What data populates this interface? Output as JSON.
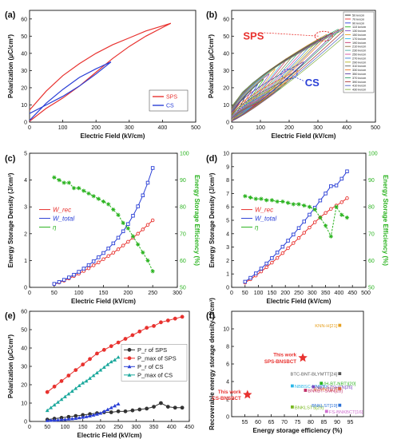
{
  "panels": {
    "a": "(a)",
    "b": "(b)",
    "c": "(c)",
    "d": "(d)",
    "e": "(e)",
    "f": "(f)"
  },
  "chart_data": [
    {
      "id": "a",
      "type": "line",
      "xlabel": "Electric Field (kV/cm)",
      "ylabel": "Polarization (μC/cm²)",
      "xlim": [
        0,
        500
      ],
      "ylim": [
        0,
        65
      ],
      "xticks": [
        0,
        100,
        200,
        300,
        400,
        500
      ],
      "yticks": [
        0,
        10,
        20,
        30,
        40,
        50,
        60
      ],
      "legend_position": "bottom-right",
      "colors": {
        "SPS": "#e8322f",
        "CS": "#2a3fd6"
      },
      "series": [
        {
          "name": "SPS",
          "color": "#e8322f",
          "up": [
            [
              0,
              7
            ],
            [
              50,
              18
            ],
            [
              100,
              27
            ],
            [
              150,
              34
            ],
            [
              200,
              40
            ],
            [
              250,
              45
            ],
            [
              300,
              49
            ],
            [
              350,
              53
            ],
            [
              400,
              56
            ],
            [
              425,
              57.5
            ]
          ],
          "down": [
            [
              425,
              57.5
            ],
            [
              400,
              55
            ],
            [
              350,
              50
            ],
            [
              300,
              44
            ],
            [
              250,
              37
            ],
            [
              200,
              29
            ],
            [
              150,
              21
            ],
            [
              100,
              14
            ],
            [
              50,
              8
            ],
            [
              0,
              0.5
            ]
          ]
        },
        {
          "name": "CS",
          "color": "#2a3fd6",
          "up": [
            [
              0,
              5
            ],
            [
              50,
              10
            ],
            [
              100,
              15
            ],
            [
              150,
              21
            ],
            [
              200,
              28
            ],
            [
              245,
              35
            ]
          ],
          "down": [
            [
              245,
              35
            ],
            [
              200,
              31
            ],
            [
              150,
              26
            ],
            [
              100,
              19
            ],
            [
              50,
              11
            ],
            [
              0,
              1
            ]
          ]
        }
      ]
    },
    {
      "id": "b",
      "type": "line",
      "xlabel": "Electric Field (kV/cm)",
      "ylabel": "Polarization (μC/cm²)",
      "xlim": [
        0,
        500
      ],
      "ylim": [
        0,
        65
      ],
      "xticks": [
        0,
        100,
        200,
        300,
        400,
        500
      ],
      "yticks": [
        0,
        10,
        20,
        30,
        40,
        50,
        60
      ],
      "legend_position": "top-right",
      "annotations": [
        {
          "text": "SPS",
          "x": 40,
          "y": 48,
          "color": "#e8322f"
        },
        {
          "text": "CS",
          "x": 255,
          "y": 21,
          "color": "#2a3fd6"
        }
      ],
      "legend": [
        "50 kv/cm",
        "70 kv/cm",
        "90 kv/cm",
        "110 kv/cm",
        "130 kv/cm",
        "150 kv/cm",
        "170 kv/cm",
        "190 kv/cm",
        "210 kv/cm",
        "230 kv/cm",
        "250 kv/cm",
        "270 kv/cm",
        "290 kv/cm",
        "310 kv/cm",
        "330 kv/cm",
        "350 kv/cm",
        "370 kv/cm",
        "390 kv/cm",
        "410 kv/cm",
        "430 kv/cm"
      ],
      "sps_max_fields": [
        50,
        70,
        90,
        110,
        130,
        150,
        170,
        190,
        210,
        230,
        250,
        270,
        290,
        310,
        330,
        350,
        370,
        390,
        410,
        430
      ],
      "sps_max_pol": [
        16,
        19,
        22,
        25,
        28,
        31,
        34,
        37,
        39,
        41,
        43,
        45,
        47,
        49,
        51,
        52,
        54,
        55,
        56,
        57
      ],
      "cs_max_fields": [
        50,
        70,
        90,
        110,
        130,
        150,
        170,
        190,
        210,
        230,
        250
      ],
      "cs_max_pol": [
        6,
        9,
        11,
        13,
        15,
        17,
        20,
        23,
        26,
        30,
        35
      ]
    },
    {
      "id": "c",
      "type": "line",
      "xlabel": "Electric Field (kV/cm)",
      "ylabel": "Energy Storage Density (J/cm³)",
      "y2label": "Energy Storage Efficiency (%)",
      "xlim": [
        0,
        300
      ],
      "ylim": [
        0,
        5
      ],
      "y2lim": [
        50,
        100
      ],
      "xticks": [
        0,
        50,
        100,
        150,
        200,
        250,
        300
      ],
      "yticks": [
        0,
        1,
        2,
        3,
        4,
        5
      ],
      "y2ticks": [
        50,
        60,
        70,
        80,
        90,
        100
      ],
      "legend_position": "middle-left",
      "legend": [
        "W_rec",
        "W_total",
        "η"
      ],
      "x": [
        50,
        60,
        70,
        80,
        90,
        100,
        110,
        120,
        130,
        140,
        150,
        160,
        170,
        180,
        190,
        200,
        210,
        220,
        230,
        240,
        250
      ],
      "series": [
        {
          "name": "W_rec",
          "color": "#e8322f",
          "axis": "left",
          "values": [
            0.12,
            0.18,
            0.25,
            0.33,
            0.42,
            0.51,
            0.61,
            0.71,
            0.82,
            0.93,
            1.05,
            1.17,
            1.29,
            1.42,
            1.56,
            1.7,
            1.85,
            2.0,
            2.16,
            2.33,
            2.5
          ]
        },
        {
          "name": "W_total",
          "color": "#2a3fd6",
          "axis": "left",
          "values": [
            0.13,
            0.2,
            0.28,
            0.37,
            0.47,
            0.58,
            0.7,
            0.83,
            0.97,
            1.12,
            1.28,
            1.45,
            1.64,
            1.85,
            2.09,
            2.36,
            2.67,
            3.02,
            3.43,
            3.9,
            4.45
          ]
        },
        {
          "name": "η",
          "color": "#2ab31f",
          "axis": "right",
          "values": [
            91,
            90,
            89,
            89,
            87,
            87,
            86,
            85,
            84,
            83,
            82,
            81,
            79,
            77,
            74,
            72,
            69,
            66,
            63,
            60,
            56
          ]
        }
      ]
    },
    {
      "id": "d",
      "type": "line",
      "xlabel": "Electric Field (kV/cm)",
      "ylabel": "Energy Storage Density (J/cm³)",
      "y2label": "Energy Storage Efficiency (%)",
      "xlim": [
        0,
        500
      ],
      "ylim": [
        0,
        10
      ],
      "y2lim": [
        50,
        100
      ],
      "xticks": [
        0,
        50,
        100,
        150,
        200,
        250,
        300,
        350,
        400,
        450,
        500
      ],
      "yticks": [
        0,
        1,
        2,
        3,
        4,
        5,
        6,
        7,
        8,
        9,
        10
      ],
      "y2ticks": [
        50,
        60,
        70,
        80,
        90,
        100
      ],
      "legend_position": "middle-left",
      "legend": [
        "W_rec",
        "W_total",
        "η"
      ],
      "x": [
        50,
        70,
        90,
        110,
        130,
        150,
        170,
        190,
        210,
        230,
        250,
        270,
        290,
        310,
        330,
        350,
        370,
        390,
        410,
        430
      ],
      "series": [
        {
          "name": "W_rec",
          "color": "#e8322f",
          "axis": "left",
          "values": [
            0.35,
            0.6,
            0.88,
            1.18,
            1.5,
            1.84,
            2.19,
            2.55,
            2.92,
            3.3,
            3.68,
            4.07,
            4.46,
            4.85,
            5.22,
            5.55,
            5.85,
            6.1,
            6.35,
            6.65
          ]
        },
        {
          "name": "W_total",
          "color": "#2a3fd6",
          "axis": "left",
          "values": [
            0.42,
            0.71,
            1.04,
            1.4,
            1.78,
            2.18,
            2.6,
            3.03,
            3.48,
            3.94,
            4.42,
            4.91,
            5.42,
            5.94,
            6.48,
            7.0,
            7.55,
            7.6,
            8.1,
            8.65
          ]
        },
        {
          "name": "η",
          "color": "#2ab31f",
          "axis": "right",
          "values": [
            84,
            83.5,
            83,
            83,
            82.5,
            82.5,
            82,
            82,
            81.5,
            81,
            81,
            80.5,
            80,
            79,
            76,
            73,
            69,
            80,
            77,
            76
          ]
        }
      ]
    },
    {
      "id": "e",
      "type": "line",
      "xlabel": "Electric Field (kV/cm)",
      "ylabel": "Polarization (μC/cm²)",
      "xlim": [
        0,
        450
      ],
      "ylim": [
        0,
        60
      ],
      "xticks": [
        0,
        50,
        100,
        150,
        200,
        250,
        300,
        350,
        400,
        450
      ],
      "yticks": [
        0,
        10,
        20,
        30,
        40,
        50,
        60
      ],
      "legend_position": "right",
      "legend": [
        "P_r of SPS",
        "P_max of SPS",
        "P_r of CS",
        "P_max of CS"
      ],
      "series": [
        {
          "name": "P_r of SPS",
          "color": "#333333",
          "marker": "circle",
          "x": [
            50,
            70,
            90,
            110,
            130,
            150,
            170,
            190,
            210,
            230,
            250,
            270,
            290,
            310,
            330,
            350,
            370,
            390,
            410,
            430
          ],
          "values": [
            1,
            1.5,
            2,
            2.5,
            3,
            3.5,
            4,
            4.5,
            5,
            5,
            5.5,
            5.5,
            6,
            6.5,
            7,
            8,
            10,
            8,
            7.5,
            7.5
          ]
        },
        {
          "name": "P_max of SPS",
          "color": "#e8322f",
          "marker": "circle",
          "x": [
            50,
            70,
            90,
            110,
            130,
            150,
            170,
            190,
            210,
            230,
            250,
            270,
            290,
            310,
            330,
            350,
            370,
            390,
            410,
            430
          ],
          "values": [
            16,
            19,
            22,
            25,
            28,
            31,
            34,
            37,
            39,
            41,
            43,
            45,
            47,
            49,
            51,
            52,
            54,
            55,
            56,
            57
          ]
        },
        {
          "name": "P_r of CS",
          "color": "#2a3fd6",
          "marker": "triangle",
          "x": [
            50,
            60,
            70,
            80,
            90,
            100,
            110,
            120,
            130,
            140,
            150,
            160,
            170,
            180,
            190,
            200,
            210,
            220,
            230,
            240,
            250
          ],
          "values": [
            0.5,
            0.6,
            0.7,
            0.8,
            1,
            1.1,
            1.3,
            1.5,
            1.7,
            2,
            2.3,
            2.6,
            3,
            3.5,
            4,
            4.5,
            5.5,
            6.5,
            7.5,
            8.5,
            9.5
          ]
        },
        {
          "name": "P_max of CS",
          "color": "#1aa89c",
          "marker": "triangle",
          "x": [
            50,
            60,
            70,
            80,
            90,
            100,
            110,
            120,
            130,
            140,
            150,
            160,
            170,
            180,
            190,
            200,
            210,
            220,
            230,
            240,
            250
          ],
          "values": [
            6,
            7.5,
            9,
            10.5,
            12,
            13.5,
            15,
            16.5,
            18,
            19.5,
            21,
            22,
            23.5,
            25,
            26.5,
            28,
            29.5,
            31,
            32.5,
            33.5,
            35
          ]
        }
      ]
    },
    {
      "id": "f",
      "type": "scatter",
      "xlabel": "Energy storage efficiency (%)",
      "ylabel": "Recoverable energy storage density (J/cm³)",
      "xlim": [
        50,
        100
      ],
      "ylim": [
        0,
        12
      ],
      "xticks": [
        55,
        60,
        65,
        70,
        75,
        80,
        85,
        90,
        95
      ],
      "yticks": [
        0,
        2,
        4,
        6,
        8,
        10
      ],
      "points": [
        {
          "label": "This work\nSPS-BNSBCT",
          "x": 77,
          "y": 6.7,
          "color": "#e8322f",
          "marker": "star",
          "bold": true
        },
        {
          "label": "This work\nCS-BNSBCT",
          "x": 56,
          "y": 2.5,
          "color": "#e8322f",
          "marker": "star",
          "bold": true
        },
        {
          "label": "KNN-H[21]",
          "x": 91,
          "y": 10.4,
          "color": "#e6a020",
          "marker": "square"
        },
        {
          "label": "BTC-BNT-BLYMTT[24]",
          "x": 91,
          "y": 4.9,
          "color": "#555555",
          "marker": "square"
        },
        {
          "label": "(H-BT-NBT)[20]",
          "x": 84,
          "y": 3.8,
          "color": "#2ab31f",
          "marker": "square"
        },
        {
          "label": "NBBSC-NN[25]",
          "x": 73,
          "y": 3.5,
          "color": "#29b6e8",
          "marker": "square"
        },
        {
          "label": "BZMNT[27]",
          "x": 91,
          "y": 3.2,
          "color": "#e67320",
          "marker": "square"
        },
        {
          "label": "NBT-SZSHTN[26]",
          "x": 81,
          "y": 3.4,
          "color": "#7b4ac0",
          "marker": "square"
        },
        {
          "label": "BNKBT-SMN[28]",
          "x": 78,
          "y": 3.0,
          "color": "#c0306a",
          "marker": "square"
        },
        {
          "label": "BNKLSTS[29]",
          "x": 73,
          "y": 1.1,
          "color": "#78b820",
          "marker": "square"
        },
        {
          "label": "BNKLST[19]",
          "x": 91,
          "y": 1.3,
          "color": "#2a6fd6",
          "marker": "square"
        },
        {
          "label": "FS-BNKBCT[16]",
          "x": 86,
          "y": 0.6,
          "color": "#d070d0",
          "marker": "square"
        }
      ]
    }
  ]
}
